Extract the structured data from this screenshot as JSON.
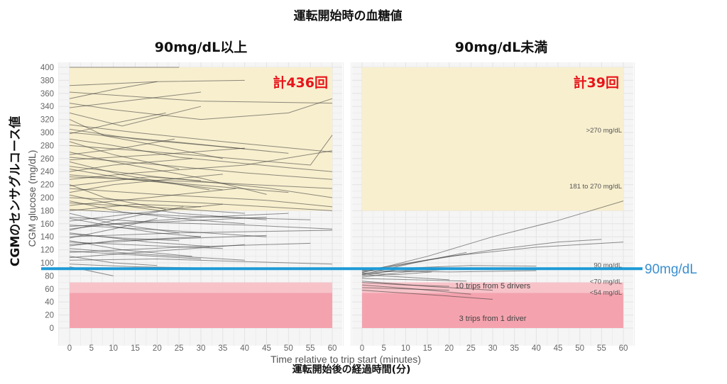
{
  "title": "運転開始時の血糖値",
  "ylabel_jp": "CGMのセンサグルコース値",
  "xlabel_jp": "運転開始後の経過時間(分)",
  "ylabel_en": "CGM glucose (mg/dL)",
  "xlabel_en": "Time relative to trip start (minutes)",
  "reference_line": {
    "value": 90,
    "label": "90mg/dL",
    "color": "#1e9ad6"
  },
  "colors": {
    "high_band": "#f8efcf",
    "low_band": "#f4a3ae",
    "lowmid_band": "#f7c3c9",
    "trace": "#333333"
  },
  "chart_data": [
    {
      "type": "line",
      "panel": "left",
      "title": "90mg/dL以上",
      "count_label": "計436回",
      "xlim": [
        0,
        60
      ],
      "ylim": [
        0,
        400
      ],
      "x_ticks": [
        0,
        5,
        10,
        15,
        20,
        25,
        30,
        35,
        40,
        45,
        50,
        55,
        60
      ],
      "y_ticks": [
        0,
        20,
        40,
        60,
        80,
        100,
        120,
        140,
        160,
        180,
        200,
        220,
        240,
        260,
        280,
        300,
        320,
        340,
        360,
        380,
        400
      ],
      "bands": [
        {
          "from": 180,
          "to": 400,
          "color": "#f8efcf"
        },
        {
          "from": 54,
          "to": 70,
          "color": "#f7c3c9"
        },
        {
          "from": 0,
          "to": 54,
          "color": "#f4a3ae"
        }
      ],
      "series": [
        {
          "x": [
            0,
            10,
            25
          ],
          "y": [
            400,
            400,
            400
          ]
        },
        {
          "x": [
            0,
            20,
            40
          ],
          "y": [
            372,
            378,
            380
          ]
        },
        {
          "x": [
            0,
            15,
            30,
            60
          ],
          "y": [
            362,
            355,
            348,
            345
          ]
        },
        {
          "x": [
            0,
            10,
            30,
            50,
            60
          ],
          "y": [
            345,
            335,
            320,
            330,
            352
          ]
        },
        {
          "x": [
            0,
            12,
            30
          ],
          "y": [
            330,
            310,
            340
          ]
        },
        {
          "x": [
            0,
            8,
            20,
            35
          ],
          "y": [
            320,
            295,
            280,
            260
          ]
        },
        {
          "x": [
            0,
            15,
            40
          ],
          "y": [
            305,
            290,
            275
          ]
        },
        {
          "x": [
            0,
            10,
            25,
            50,
            60
          ],
          "y": [
            290,
            280,
            262,
            246,
            240
          ]
        },
        {
          "x": [
            0,
            20,
            55,
            60
          ],
          "y": [
            280,
            270,
            250,
            296
          ]
        },
        {
          "x": [
            0,
            10,
            30,
            45
          ],
          "y": [
            270,
            255,
            230,
            205
          ]
        },
        {
          "x": [
            0,
            18,
            40,
            60
          ],
          "y": [
            262,
            252,
            238,
            228
          ]
        },
        {
          "x": [
            0,
            12,
            32
          ],
          "y": [
            255,
            235,
            212
          ]
        },
        {
          "x": [
            0,
            20,
            45,
            60
          ],
          "y": [
            248,
            232,
            215,
            200
          ]
        },
        {
          "x": [
            0,
            10,
            28
          ],
          "y": [
            240,
            250,
            260
          ]
        },
        {
          "x": [
            0,
            25,
            50
          ],
          "y": [
            235,
            222,
            208
          ]
        },
        {
          "x": [
            0,
            15,
            40,
            60
          ],
          "y": [
            228,
            238,
            250,
            272
          ]
        },
        {
          "x": [
            0,
            8,
            22
          ],
          "y": [
            220,
            200,
            182
          ]
        },
        {
          "x": [
            0,
            20,
            45,
            60
          ],
          "y": [
            214,
            205,
            196,
            186
          ]
        },
        {
          "x": [
            0,
            10,
            35
          ],
          "y": [
            208,
            220,
            236
          ]
        },
        {
          "x": [
            0,
            30,
            60
          ],
          "y": [
            200,
            192,
            180
          ]
        },
        {
          "x": [
            0,
            12,
            28,
            40
          ],
          "y": [
            195,
            178,
            166,
            160
          ]
        },
        {
          "x": [
            0,
            18,
            38
          ],
          "y": [
            188,
            200,
            214
          ]
        },
        {
          "x": [
            0,
            25,
            55
          ],
          "y": [
            182,
            172,
            166
          ]
        },
        {
          "x": [
            0,
            10,
            25
          ],
          "y": [
            176,
            160,
            146
          ]
        },
        {
          "x": [
            0,
            20,
            40,
            60
          ],
          "y": [
            170,
            162,
            158,
            152
          ]
        },
        {
          "x": [
            0,
            15,
            35
          ],
          "y": [
            164,
            176,
            190
          ]
        },
        {
          "x": [
            0,
            22,
            45
          ],
          "y": [
            158,
            150,
            140
          ]
        },
        {
          "x": [
            0,
            10,
            30,
            50
          ],
          "y": [
            152,
            160,
            170,
            176
          ]
        },
        {
          "x": [
            0,
            18,
            32
          ],
          "y": [
            146,
            132,
            125
          ]
        },
        {
          "x": [
            0,
            25,
            60
          ],
          "y": [
            140,
            146,
            150
          ]
        },
        {
          "x": [
            0,
            12,
            28
          ],
          "y": [
            134,
            120,
            110
          ]
        },
        {
          "x": [
            0,
            20,
            45
          ],
          "y": [
            128,
            136,
            142
          ]
        },
        {
          "x": [
            0,
            15,
            30,
            40
          ],
          "y": [
            122,
            114,
            108,
            104
          ]
        },
        {
          "x": [
            0,
            25,
            55
          ],
          "y": [
            116,
            124,
            130
          ]
        },
        {
          "x": [
            0,
            10,
            20
          ],
          "y": [
            110,
            100,
            96
          ]
        },
        {
          "x": [
            0,
            20,
            40,
            60
          ],
          "y": [
            104,
            106,
            102,
            98
          ]
        },
        {
          "x": [
            0,
            15,
            32
          ],
          "y": [
            98,
            94,
            92
          ]
        },
        {
          "x": [
            0,
            10
          ],
          "y": [
            94,
            80
          ]
        },
        {
          "x": [
            0,
            25,
            50
          ],
          "y": [
            300,
            285,
            268
          ]
        },
        {
          "x": [
            0,
            15,
            35,
            60
          ],
          "y": [
            312,
            300,
            286,
            270
          ]
        },
        {
          "x": [
            0,
            10,
            25
          ],
          "y": [
            286,
            266,
            244
          ]
        },
        {
          "x": [
            0,
            20,
            40
          ],
          "y": [
            258,
            266,
            276
          ]
        },
        {
          "x": [
            0,
            12,
            28,
            35
          ],
          "y": [
            244,
            230,
            218,
            212
          ]
        },
        {
          "x": [
            0,
            30,
            60
          ],
          "y": [
            232,
            224,
            214
          ]
        },
        {
          "x": [
            0,
            18,
            30
          ],
          "y": [
            218,
            232,
            226
          ]
        },
        {
          "x": [
            0,
            10,
            25,
            45
          ],
          "y": [
            204,
            190,
            176,
            166
          ]
        },
        {
          "x": [
            0,
            22,
            40
          ],
          "y": [
            192,
            184,
            176
          ]
        },
        {
          "x": [
            0,
            15,
            30
          ],
          "y": [
            180,
            190,
            186
          ]
        },
        {
          "x": [
            0,
            10,
            20,
            30
          ],
          "y": [
            168,
            156,
            146,
            140
          ]
        },
        {
          "x": [
            0,
            25,
            45
          ],
          "y": [
            156,
            164,
            170
          ]
        },
        {
          "x": [
            0,
            12,
            25
          ],
          "y": [
            144,
            138,
            134
          ]
        },
        {
          "x": [
            0,
            20,
            35
          ],
          "y": [
            132,
            126,
            122
          ]
        },
        {
          "x": [
            0,
            10,
            30
          ],
          "y": [
            126,
            134,
            140
          ]
        },
        {
          "x": [
            0,
            15,
            30
          ],
          "y": [
            118,
            112,
            106
          ]
        },
        {
          "x": [
            0,
            12,
            24
          ],
          "y": [
            266,
            276,
            290
          ]
        },
        {
          "x": [
            0,
            10,
            22
          ],
          "y": [
            298,
            314,
            330
          ]
        },
        {
          "x": [
            0,
            15,
            30
          ],
          "y": [
            338,
            350,
            362
          ]
        },
        {
          "x": [
            0,
            10,
            20
          ],
          "y": [
            352,
            366,
            378
          ]
        },
        {
          "x": [
            0,
            10,
            20
          ],
          "y": [
            138,
            152,
            168
          ]
        },
        {
          "x": [
            0,
            12,
            26
          ],
          "y": [
            150,
            168,
            186
          ]
        },
        {
          "x": [
            0,
            20,
            40
          ],
          "y": [
            108,
            118,
            128
          ]
        }
      ],
      "annotations": []
    },
    {
      "type": "line",
      "panel": "right",
      "title": "90mg/dL未満",
      "count_label": "計39回",
      "xlim": [
        0,
        60
      ],
      "ylim": [
        0,
        400
      ],
      "x_ticks": [
        0,
        5,
        10,
        15,
        20,
        25,
        30,
        35,
        40,
        45,
        50,
        55,
        60
      ],
      "bands": [
        {
          "from": 180,
          "to": 400,
          "color": "#f8efcf"
        },
        {
          "from": 54,
          "to": 70,
          "color": "#f7c3c9"
        },
        {
          "from": 0,
          "to": 54,
          "color": "#f4a3ae"
        }
      ],
      "band_labels": [
        ">270 mg/dL",
        "181 to 270 mg/dL",
        "90 mg/dL",
        "<70 mg/dL",
        "<54 mg/dL"
      ],
      "annotations": [
        "10 trips from 5 drivers",
        "3 trips from 1 driver"
      ],
      "series": [
        {
          "x": [
            0,
            15,
            30,
            45,
            60
          ],
          "y": [
            85,
            110,
            140,
            165,
            195
          ]
        },
        {
          "x": [
            0,
            20,
            40,
            60
          ],
          "y": [
            88,
            110,
            124,
            132
          ]
        },
        {
          "x": [
            0,
            15,
            30,
            45,
            55
          ],
          "y": [
            86,
            104,
            120,
            132,
            136
          ]
        },
        {
          "x": [
            0,
            12,
            24
          ],
          "y": [
            82,
            100,
            116
          ]
        },
        {
          "x": [
            0,
            10,
            25,
            40
          ],
          "y": [
            80,
            92,
            96,
            95
          ]
        },
        {
          "x": [
            0,
            10,
            20
          ],
          "y": [
            78,
            86,
            90
          ]
        },
        {
          "x": [
            0,
            15,
            30
          ],
          "y": [
            84,
            90,
            92
          ]
        },
        {
          "x": [
            0,
            12,
            24
          ],
          "y": [
            76,
            74,
            72
          ]
        },
        {
          "x": [
            0,
            10,
            20
          ],
          "y": [
            70,
            66,
            64
          ]
        },
        {
          "x": [
            0,
            15,
            30
          ],
          "y": [
            72,
            64,
            58
          ]
        },
        {
          "x": [
            0,
            12,
            25
          ],
          "y": [
            66,
            60,
            52
          ]
        },
        {
          "x": [
            0,
            10,
            20
          ],
          "y": [
            62,
            60,
            58
          ]
        },
        {
          "x": [
            0,
            18,
            30
          ],
          "y": [
            58,
            50,
            44
          ]
        },
        {
          "x": [
            0,
            10,
            20
          ],
          "y": [
            82,
            78,
            74
          ]
        },
        {
          "x": [
            0,
            20,
            40
          ],
          "y": [
            88,
            86,
            88
          ]
        },
        {
          "x": [
            0,
            8,
            16
          ],
          "y": [
            84,
            82,
            86
          ]
        }
      ]
    }
  ]
}
